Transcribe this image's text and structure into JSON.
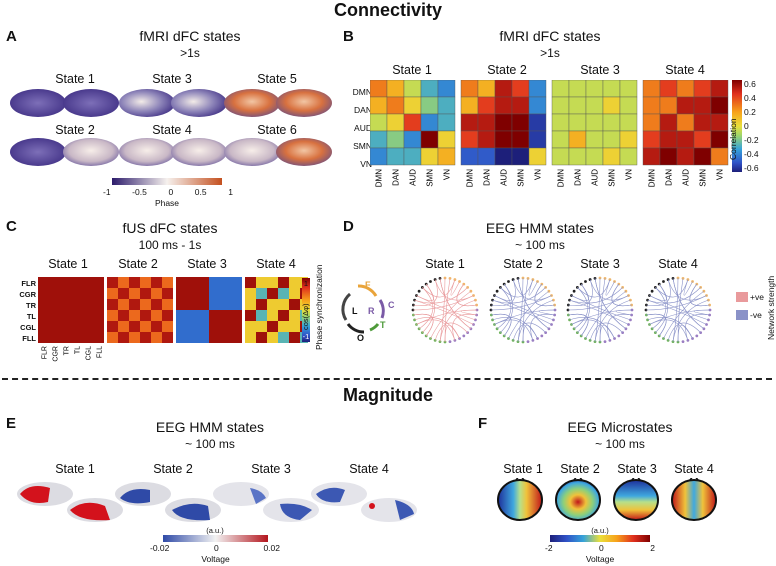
{
  "connectivity_title": "Connectivity",
  "magnitude_title": "Magnitude",
  "panelA": {
    "letter": "A",
    "title": "fMRI dFC states",
    "subtitle": ">1s",
    "states": [
      "State 1",
      "State 3",
      "State 5",
      "State 2",
      "State 4",
      "State 6"
    ],
    "colorbar": {
      "ticks": [
        "-1",
        "-0.5",
        "0",
        "0.5",
        "1"
      ],
      "label": "Phase"
    }
  },
  "panelB": {
    "letter": "B",
    "title": "fMRI dFC states",
    "subtitle": ">1s",
    "states": [
      "State 1",
      "State 2",
      "State 3",
      "State 4"
    ],
    "rows": [
      "DMN",
      "DAN",
      "AUD",
      "SMN",
      "VN"
    ],
    "cols": [
      "DMN",
      "DAN",
      "AUD",
      "SMN",
      "VN"
    ],
    "colorbar": {
      "ticks": [
        "0.6",
        "0.4",
        "0.2",
        "0",
        "-0.2",
        "-0.4",
        "-0.6"
      ],
      "label": "Correlation"
    },
    "matrices": [
      [
        [
          0.3,
          0.2,
          0.0,
          -0.2,
          -0.3
        ],
        [
          0.2,
          0.3,
          0.1,
          -0.1,
          -0.2
        ],
        [
          0.0,
          0.1,
          0.4,
          -0.3,
          -0.2
        ],
        [
          -0.2,
          -0.1,
          -0.3,
          0.6,
          0.1
        ],
        [
          -0.3,
          -0.2,
          -0.2,
          0.1,
          0.2
        ]
      ],
      [
        [
          0.3,
          0.2,
          0.5,
          0.4,
          -0.3
        ],
        [
          0.2,
          0.4,
          0.5,
          0.5,
          -0.3
        ],
        [
          0.5,
          0.5,
          0.6,
          0.6,
          -0.5
        ],
        [
          0.4,
          0.5,
          0.6,
          0.6,
          -0.5
        ],
        [
          -0.4,
          -0.4,
          -0.6,
          -0.6,
          0.1
        ]
      ],
      [
        [
          0.0,
          0.0,
          0.0,
          0.0,
          0.0
        ],
        [
          0.0,
          0.0,
          0.0,
          0.1,
          0.0
        ],
        [
          0.0,
          0.0,
          0.0,
          0.0,
          0.0
        ],
        [
          0.0,
          0.2,
          0.0,
          0.0,
          0.1
        ],
        [
          0.0,
          0.0,
          0.0,
          0.1,
          0.0
        ]
      ],
      [
        [
          0.3,
          0.4,
          0.3,
          0.4,
          0.5
        ],
        [
          0.3,
          0.3,
          0.5,
          0.5,
          0.6
        ],
        [
          0.3,
          0.5,
          0.3,
          0.5,
          0.5
        ],
        [
          0.4,
          0.5,
          0.5,
          0.4,
          0.6
        ],
        [
          0.5,
          0.6,
          0.5,
          0.6,
          0.3
        ]
      ]
    ]
  },
  "panelC": {
    "letter": "C",
    "title": "fUS dFC states",
    "subtitle": "100 ms - 1s",
    "states": [
      "State 1",
      "State 2",
      "State 3",
      "State 4"
    ],
    "rows": [
      "FLR",
      "CGR",
      "TR",
      "TL",
      "CGL",
      "FLL"
    ],
    "cols": [
      "FLR",
      "CGR",
      "TR",
      "TL",
      "CGL",
      "FLL"
    ],
    "colorbar": {
      "top": "1",
      "bottom": "-1",
      "inner": "cos(Δφ)",
      "label": "Phase synchronization"
    }
  },
  "panelD": {
    "letter": "D",
    "title": "EEG HMM states",
    "subtitle": "~ 100 ms",
    "states": [
      "State 1",
      "State 2",
      "State 3",
      "State 4"
    ],
    "legend_letters": [
      "F",
      "C",
      "T",
      "O",
      "L",
      "R"
    ],
    "legend": [
      {
        "label": "+ve",
        "color": "#e99a9c"
      },
      {
        "label": "-ve",
        "color": "#8a92c8"
      }
    ],
    "legend_title": "Network strength"
  },
  "panelE": {
    "letter": "E",
    "title": "EEG HMM states",
    "subtitle": "~ 100 ms",
    "states": [
      "State 1",
      "State 2",
      "State 3",
      "State 4"
    ],
    "colorbar": {
      "ticks": [
        "-0.02",
        "0",
        "0.02"
      ],
      "unit": "(a.u.)",
      "label": "Voltage"
    }
  },
  "panelF": {
    "letter": "F",
    "title": "EEG Microstates",
    "subtitle": "~ 100 ms",
    "states": [
      "State 1",
      "State 2",
      "State 3",
      "State 4"
    ],
    "colorbar": {
      "ticks": [
        "-2",
        "0",
        "2"
      ],
      "unit": "(a.u.)",
      "label": "Voltage"
    }
  }
}
